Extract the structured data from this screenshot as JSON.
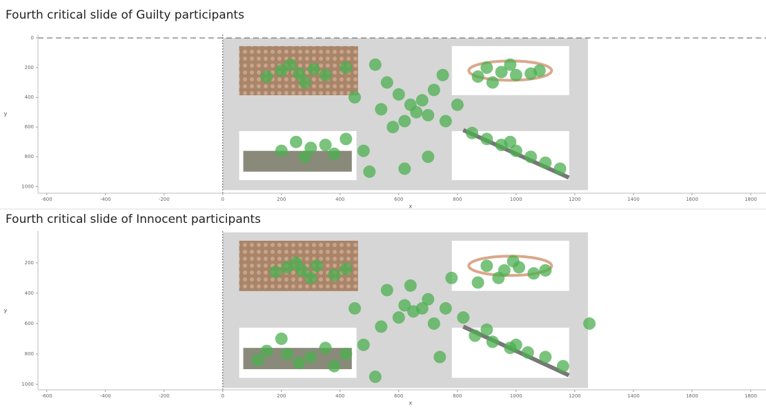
{
  "chart_data": [
    {
      "type": "scatter",
      "title": "Fourth critical slide of Guilty participants",
      "x_label": "x",
      "y_label": "y",
      "xlim": [
        -630,
        1852
      ],
      "ylim": [
        -23,
        1045
      ],
      "invert_y": true,
      "xticks": [
        -600,
        -400,
        -200,
        0,
        200,
        400,
        600,
        800,
        1000,
        1200,
        1400,
        1600,
        1800
      ],
      "yticks": [
        0,
        200,
        400,
        600,
        800,
        1000
      ],
      "color": "#4caf50",
      "x": [
        200,
        260,
        310,
        350,
        150,
        420,
        280,
        230,
        520,
        560,
        600,
        640,
        660,
        700,
        620,
        680,
        720,
        580,
        540,
        760,
        900,
        950,
        1000,
        980,
        1050,
        920,
        870,
        1080,
        850,
        900,
        950,
        1000,
        1050,
        1100,
        1150,
        980,
        250,
        300,
        200,
        350,
        280,
        420,
        480,
        380,
        450,
        750,
        800,
        500,
        700,
        620
      ],
      "values": [
        220,
        240,
        210,
        250,
        260,
        200,
        300,
        180,
        180,
        300,
        380,
        450,
        500,
        520,
        560,
        420,
        350,
        600,
        480,
        560,
        200,
        230,
        250,
        180,
        240,
        300,
        260,
        220,
        640,
        680,
        720,
        760,
        800,
        840,
        880,
        700,
        700,
        740,
        760,
        720,
        800,
        680,
        760,
        780,
        400,
        250,
        450,
        900,
        800,
        880
      ]
    },
    {
      "type": "scatter",
      "title": "Fourth critical slide of Innocent participants",
      "x_label": "x",
      "y_label": "y",
      "xlim": [
        -630,
        1852
      ],
      "ylim": [
        -8,
        1036
      ],
      "invert_y": true,
      "xticks": [
        -600,
        -400,
        -200,
        0,
        200,
        400,
        600,
        800,
        1000,
        1200,
        1400,
        1600,
        1800
      ],
      "yticks": [
        200,
        400,
        600,
        800,
        1000
      ],
      "color": "#4caf50",
      "x": [
        220,
        270,
        320,
        180,
        380,
        300,
        250,
        420,
        560,
        620,
        650,
        680,
        600,
        700,
        540,
        720,
        640,
        760,
        900,
        960,
        1010,
        940,
        1060,
        870,
        990,
        1100,
        860,
        920,
        980,
        1040,
        1100,
        1160,
        1000,
        900,
        150,
        220,
        300,
        350,
        260,
        420,
        480,
        120,
        380,
        200,
        450,
        780,
        820,
        520,
        740,
        1250
      ],
      "values": [
        230,
        250,
        220,
        260,
        280,
        300,
        200,
        240,
        380,
        480,
        520,
        500,
        560,
        440,
        620,
        600,
        350,
        500,
        220,
        250,
        230,
        300,
        270,
        330,
        190,
        250,
        680,
        720,
        760,
        790,
        820,
        880,
        740,
        640,
        780,
        800,
        820,
        760,
        860,
        800,
        740,
        840,
        880,
        700,
        500,
        300,
        560,
        950,
        820,
        600
      ]
    }
  ]
}
